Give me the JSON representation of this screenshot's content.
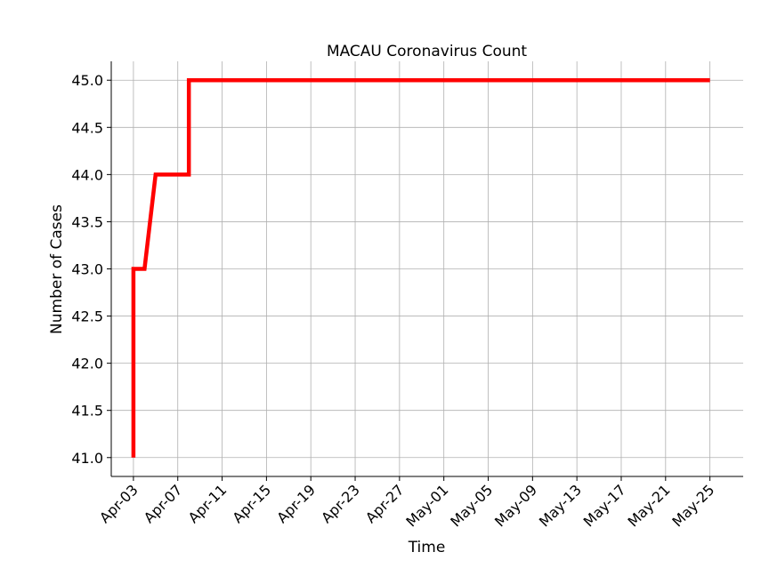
{
  "chart_data": {
    "type": "line",
    "title": "MACAU Coronavirus Count",
    "xlabel": "Time",
    "ylabel": "Number of Cases",
    "x_ticks": [
      "Apr-03",
      "Apr-07",
      "Apr-11",
      "Apr-15",
      "Apr-19",
      "Apr-23",
      "Apr-27",
      "May-01",
      "May-05",
      "May-09",
      "May-13",
      "May-17",
      "May-21",
      "May-25"
    ],
    "y_ticks": [
      "41.0",
      "41.5",
      "42.0",
      "42.5",
      "43.0",
      "43.5",
      "44.0",
      "44.5",
      "45.0"
    ],
    "ylim": [
      40.8,
      45.2
    ],
    "xlim": [
      "2020-04-01",
      "2020-05-28"
    ],
    "grid": true,
    "series": [
      {
        "color": "#ff0000",
        "points": [
          {
            "x": "2020-04-03",
            "y": 41
          },
          {
            "x": "2020-04-03",
            "y": 43
          },
          {
            "x": "2020-04-04",
            "y": 43
          },
          {
            "x": "2020-04-05",
            "y": 44
          },
          {
            "x": "2020-04-06",
            "y": 44
          },
          {
            "x": "2020-04-07",
            "y": 44
          },
          {
            "x": "2020-04-08",
            "y": 44
          },
          {
            "x": "2020-04-08",
            "y": 45
          },
          {
            "x": "2020-04-15",
            "y": 45
          },
          {
            "x": "2020-04-25",
            "y": 45
          },
          {
            "x": "2020-05-05",
            "y": 45
          },
          {
            "x": "2020-05-15",
            "y": 45
          },
          {
            "x": "2020-05-25",
            "y": 45
          }
        ]
      }
    ]
  }
}
